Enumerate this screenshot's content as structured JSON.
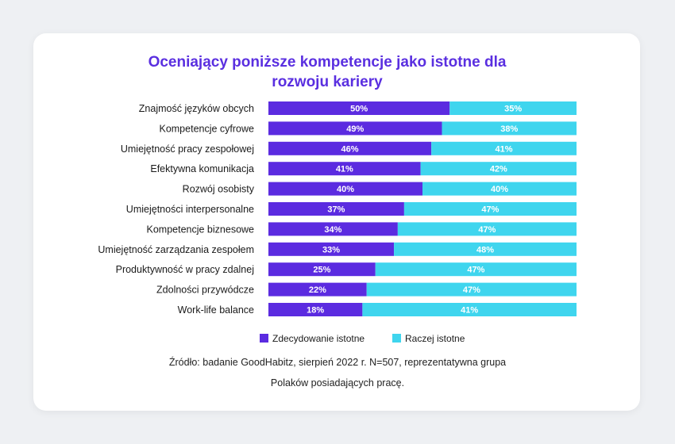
{
  "colors": {
    "series1": "#5b2be0",
    "series2": "#3fd5ee",
    "title": "#5a2fe0"
  },
  "chart_data": {
    "type": "bar",
    "orientation": "horizontal",
    "stacked": true,
    "title_lines": [
      "Oceniający poniższe kompetencje jako istotne dla",
      "rozwoju kariery"
    ],
    "categories": [
      "Znajmość języków obcych",
      "Kompetencje cyfrowe",
      "Umiejętność pracy zespołowej",
      "Efektywna komunikacja",
      "Rozwój osobisty",
      "Umiejętności interpersonalne",
      "Kompetencje biznesowe",
      "Umiejętność zarządzania zespołem",
      "Produktywność w pracy zdalnej",
      "Zdolności przywódcze",
      "Work-life balance"
    ],
    "series": [
      {
        "name": "Zdecydowanie istotne",
        "values": [
          50,
          49,
          46,
          41,
          40,
          37,
          34,
          33,
          25,
          22,
          18
        ]
      },
      {
        "name": "Raczej istotne",
        "values": [
          35,
          38,
          41,
          42,
          40,
          47,
          47,
          48,
          47,
          47,
          41
        ]
      }
    ],
    "value_labels": [
      [
        "50%",
        "49%",
        "46%",
        "41%",
        "40%",
        "37%",
        "34%",
        "33%",
        "25%",
        "22%",
        "18%"
      ],
      [
        "35%",
        "38%",
        "41%",
        "42%",
        "40%",
        "47%",
        "47%",
        "48%",
        "47%",
        "47%",
        "41%"
      ]
    ],
    "xlim": [
      0,
      100
    ],
    "grid": false,
    "legend": "bottom"
  },
  "source_lines": [
    "Źródło: badanie GoodHabitz, sierpień 2022 r. N=507, reprezentatywna grupa",
    "Polaków posiadających pracę."
  ]
}
